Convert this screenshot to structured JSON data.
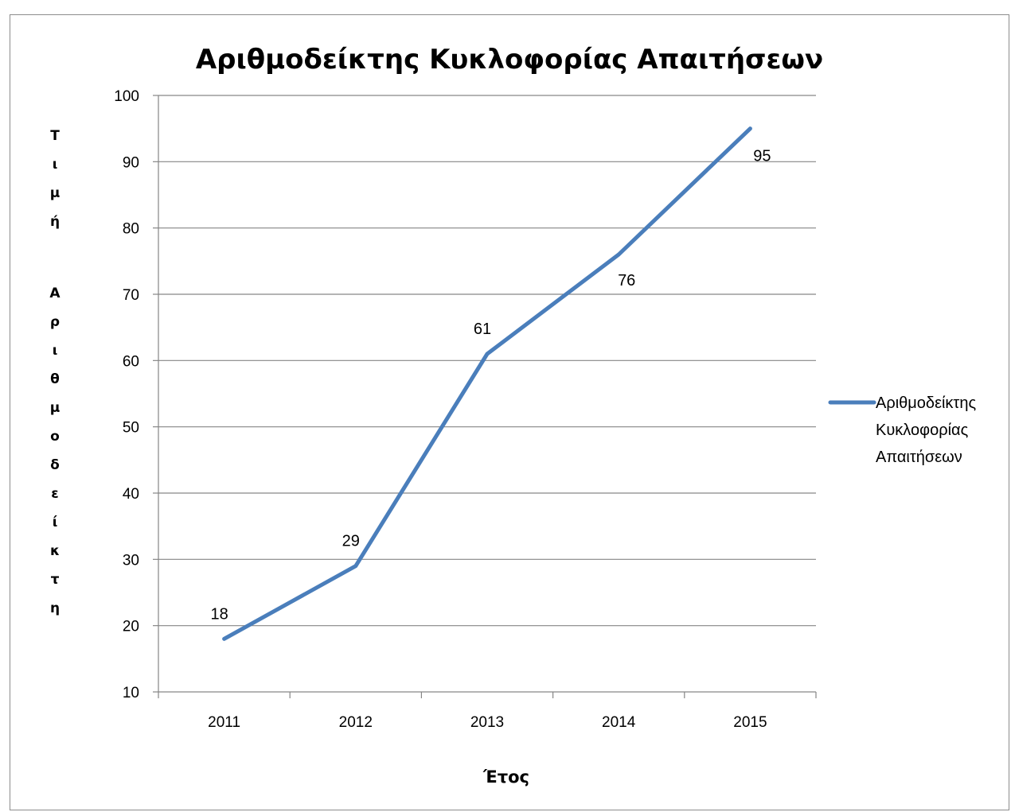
{
  "chart_data": {
    "type": "line",
    "title": "Αριθμοδείκτης Κυκλοφορίας Απαιτήσεων",
    "xlabel": "Έτος",
    "ylabel": "Τιμή Αριθμοδείκτη",
    "categories": [
      "2011",
      "2012",
      "2013",
      "2014",
      "2015"
    ],
    "series": [
      {
        "name": "Αριθμοδείκτης Κυκλοφορίας Απαιτήσεων",
        "values": [
          18,
          29,
          61,
          76,
          95
        ],
        "color": "#4a7ebb"
      }
    ],
    "ylim": [
      10,
      100
    ],
    "yticks": [
      10,
      20,
      30,
      40,
      50,
      60,
      70,
      80,
      90,
      100
    ],
    "grid": true,
    "legend": "right"
  }
}
